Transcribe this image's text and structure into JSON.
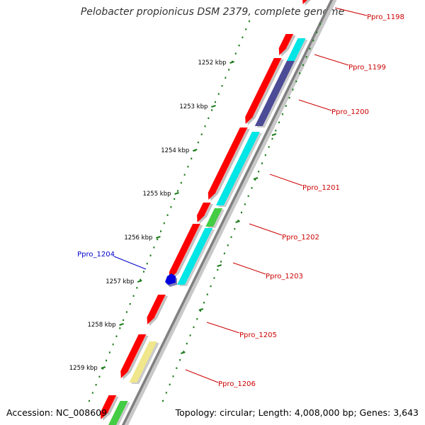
{
  "title": "Pelobacter propionicus DSM 2379, complete genome",
  "footer": {
    "accession": "Accession: NC_008609",
    "summary": "Topology: circular; Length: 4,008,000 bp; Genes: 3,643"
  },
  "colors": {
    "backbone": "#808080",
    "tick": "#1e7d1e",
    "label_red": "#cc0000",
    "label_blue": "#0000cc",
    "gene_red": "#ff0000",
    "gene_cyan": "#00e5e5",
    "gene_slate": "#4b4b96",
    "gene_green": "#44cc44",
    "gene_khaki": "#f0e68c",
    "gene_blue": "#0000dd"
  },
  "kbp_ticks": [
    {
      "label": "1252 kbp"
    },
    {
      "label": "1253 kbp"
    },
    {
      "label": "1254 kbp"
    },
    {
      "label": "1255 kbp"
    },
    {
      "label": "1256 kbp"
    },
    {
      "label": "1257 kbp"
    },
    {
      "label": "1258 kbp"
    },
    {
      "label": "1259 kbp"
    }
  ],
  "gene_labels": [
    {
      "name": "Ppro_1198",
      "color": "red"
    },
    {
      "name": "Ppro_1199",
      "color": "red"
    },
    {
      "name": "Ppro_1200",
      "color": "red"
    },
    {
      "name": "Ppro_1201",
      "color": "red"
    },
    {
      "name": "Ppro_1202",
      "color": "red"
    },
    {
      "name": "Ppro_1203",
      "color": "red"
    },
    {
      "name": "Ppro_1204",
      "color": "blue"
    },
    {
      "name": "Ppro_1205",
      "color": "red"
    },
    {
      "name": "Ppro_1206",
      "color": "red"
    }
  ]
}
